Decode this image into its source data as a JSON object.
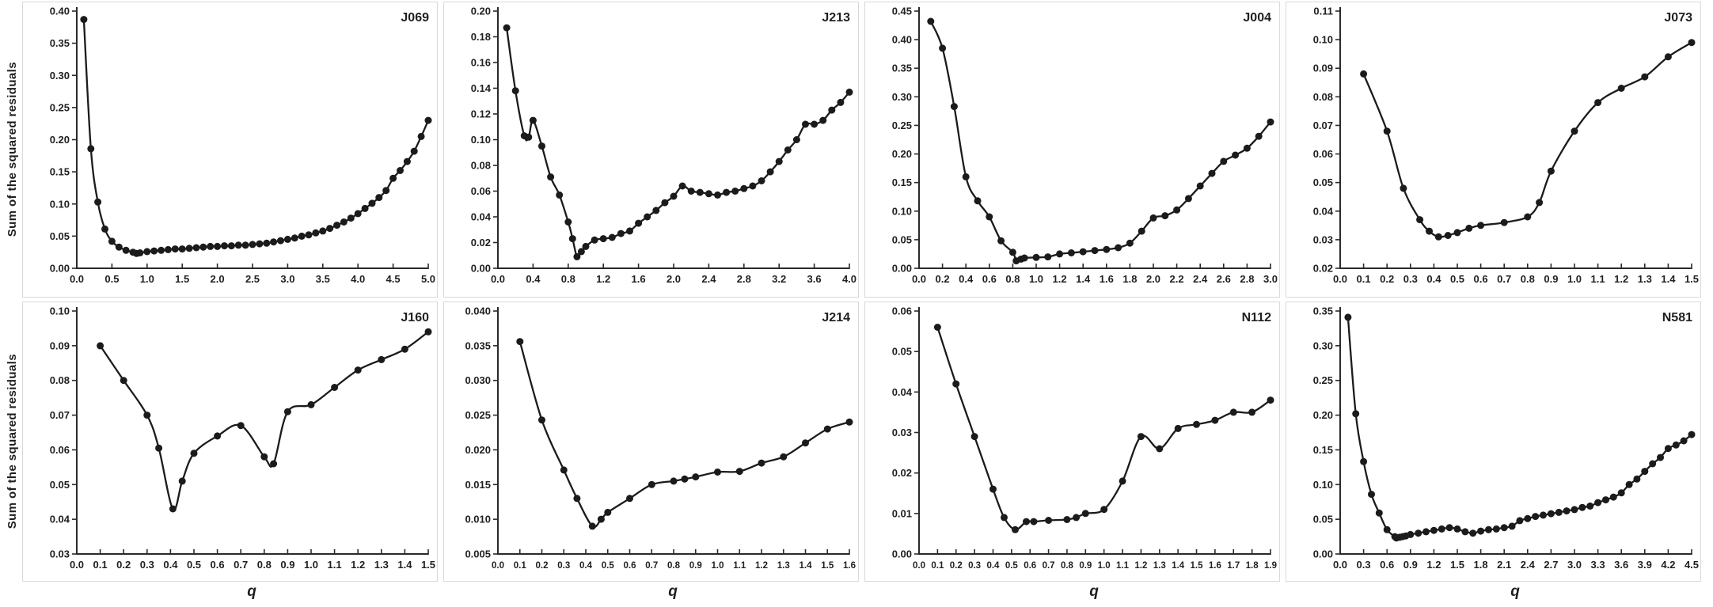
{
  "figure": {
    "ylabel": "Sum of the squared residuals",
    "xlabel": "q",
    "line_color": "#1b1b1b",
    "text_color": "#1f1f1f",
    "panel_border_color": "#d9d9d9"
  },
  "chart_data": [
    {
      "id": "J069",
      "type": "line",
      "title": "J069",
      "row": 0,
      "xlabel": "",
      "ylabel": "Sum of the squared residuals",
      "xlim": [
        0.0,
        5.0
      ],
      "ylim": [
        0.0,
        0.4
      ],
      "xtick_step": 0.5,
      "ytick_step": 0.05,
      "xtick_decimals": 1,
      "ytick_decimals": 2,
      "grid": false,
      "legend": "none",
      "points": [
        [
          0.1,
          0.387
        ],
        [
          0.2,
          0.186
        ],
        [
          0.3,
          0.103
        ],
        [
          0.4,
          0.061
        ],
        [
          0.5,
          0.042
        ],
        [
          0.6,
          0.033
        ],
        [
          0.7,
          0.028
        ],
        [
          0.8,
          0.025
        ],
        [
          0.85,
          0.023
        ],
        [
          0.9,
          0.024
        ],
        [
          1.0,
          0.026
        ],
        [
          1.1,
          0.027
        ],
        [
          1.2,
          0.028
        ],
        [
          1.3,
          0.029
        ],
        [
          1.4,
          0.03
        ],
        [
          1.5,
          0.03
        ],
        [
          1.6,
          0.031
        ],
        [
          1.7,
          0.032
        ],
        [
          1.8,
          0.033
        ],
        [
          1.9,
          0.034
        ],
        [
          2.0,
          0.034
        ],
        [
          2.1,
          0.035
        ],
        [
          2.2,
          0.035
        ],
        [
          2.3,
          0.036
        ],
        [
          2.4,
          0.036
        ],
        [
          2.5,
          0.037
        ],
        [
          2.6,
          0.038
        ],
        [
          2.7,
          0.039
        ],
        [
          2.8,
          0.041
        ],
        [
          2.9,
          0.043
        ],
        [
          3.0,
          0.045
        ],
        [
          3.1,
          0.047
        ],
        [
          3.2,
          0.05
        ],
        [
          3.3,
          0.052
        ],
        [
          3.4,
          0.055
        ],
        [
          3.5,
          0.058
        ],
        [
          3.6,
          0.062
        ],
        [
          3.7,
          0.067
        ],
        [
          3.8,
          0.072
        ],
        [
          3.9,
          0.078
        ],
        [
          4.0,
          0.085
        ],
        [
          4.1,
          0.093
        ],
        [
          4.2,
          0.101
        ],
        [
          4.3,
          0.11
        ],
        [
          4.4,
          0.121
        ],
        [
          4.5,
          0.14
        ],
        [
          4.6,
          0.152
        ],
        [
          4.7,
          0.166
        ],
        [
          4.8,
          0.182
        ],
        [
          4.9,
          0.205
        ],
        [
          5.0,
          0.23
        ]
      ]
    },
    {
      "id": "J213",
      "type": "line",
      "title": "J213",
      "row": 0,
      "xlabel": "",
      "ylabel": "Sum of the squared residuals",
      "xlim": [
        0.0,
        4.0
      ],
      "ylim": [
        0.0,
        0.2
      ],
      "xtick_step": 0.4,
      "ytick_step": 0.02,
      "xtick_decimals": 1,
      "ytick_decimals": 2,
      "grid": false,
      "legend": "none",
      "points": [
        [
          0.1,
          0.187
        ],
        [
          0.2,
          0.138
        ],
        [
          0.3,
          0.103
        ],
        [
          0.35,
          0.102
        ],
        [
          0.4,
          0.115
        ],
        [
          0.5,
          0.095
        ],
        [
          0.6,
          0.071
        ],
        [
          0.7,
          0.057
        ],
        [
          0.8,
          0.036
        ],
        [
          0.85,
          0.023
        ],
        [
          0.9,
          0.009
        ],
        [
          0.95,
          0.013
        ],
        [
          1.0,
          0.017
        ],
        [
          1.1,
          0.022
        ],
        [
          1.2,
          0.023
        ],
        [
          1.3,
          0.024
        ],
        [
          1.4,
          0.027
        ],
        [
          1.5,
          0.029
        ],
        [
          1.6,
          0.035
        ],
        [
          1.7,
          0.04
        ],
        [
          1.8,
          0.045
        ],
        [
          1.9,
          0.051
        ],
        [
          2.0,
          0.056
        ],
        [
          2.1,
          0.064
        ],
        [
          2.2,
          0.06
        ],
        [
          2.3,
          0.059
        ],
        [
          2.4,
          0.058
        ],
        [
          2.5,
          0.057
        ],
        [
          2.6,
          0.059
        ],
        [
          2.7,
          0.06
        ],
        [
          2.8,
          0.062
        ],
        [
          2.9,
          0.064
        ],
        [
          3.0,
          0.068
        ],
        [
          3.1,
          0.075
        ],
        [
          3.2,
          0.083
        ],
        [
          3.3,
          0.092
        ],
        [
          3.4,
          0.1
        ],
        [
          3.5,
          0.112
        ],
        [
          3.6,
          0.112
        ],
        [
          3.7,
          0.115
        ],
        [
          3.8,
          0.123
        ],
        [
          3.9,
          0.129
        ],
        [
          4.0,
          0.137
        ]
      ]
    },
    {
      "id": "J004",
      "type": "line",
      "title": "J004",
      "row": 0,
      "xlabel": "",
      "ylabel": "Sum of the squared residuals",
      "xlim": [
        0.0,
        3.0
      ],
      "ylim": [
        0.0,
        0.45
      ],
      "xtick_step": 0.2,
      "ytick_step": 0.05,
      "xtick_decimals": 1,
      "ytick_decimals": 2,
      "grid": false,
      "legend": "none",
      "points": [
        [
          0.1,
          0.432
        ],
        [
          0.2,
          0.385
        ],
        [
          0.3,
          0.283
        ],
        [
          0.4,
          0.16
        ],
        [
          0.5,
          0.118
        ],
        [
          0.6,
          0.09
        ],
        [
          0.7,
          0.048
        ],
        [
          0.8,
          0.028
        ],
        [
          0.83,
          0.013
        ],
        [
          0.87,
          0.016
        ],
        [
          0.9,
          0.018
        ],
        [
          1.0,
          0.019
        ],
        [
          1.1,
          0.02
        ],
        [
          1.2,
          0.025
        ],
        [
          1.3,
          0.027
        ],
        [
          1.4,
          0.029
        ],
        [
          1.5,
          0.031
        ],
        [
          1.6,
          0.033
        ],
        [
          1.7,
          0.036
        ],
        [
          1.8,
          0.044
        ],
        [
          1.9,
          0.065
        ],
        [
          2.0,
          0.088
        ],
        [
          2.1,
          0.092
        ],
        [
          2.2,
          0.102
        ],
        [
          2.3,
          0.122
        ],
        [
          2.4,
          0.144
        ],
        [
          2.5,
          0.166
        ],
        [
          2.6,
          0.187
        ],
        [
          2.7,
          0.198
        ],
        [
          2.8,
          0.21
        ],
        [
          2.9,
          0.231
        ],
        [
          3.0,
          0.256
        ]
      ]
    },
    {
      "id": "J073",
      "type": "line",
      "title": "J073",
      "row": 0,
      "xlabel": "",
      "ylabel": "Sum of the squared residuals",
      "xlim": [
        0.0,
        1.5
      ],
      "ylim": [
        0.02,
        0.11
      ],
      "xtick_step": 0.1,
      "ytick_step": 0.01,
      "xtick_decimals": 1,
      "ytick_decimals": 2,
      "grid": false,
      "legend": "none",
      "points": [
        [
          0.1,
          0.088
        ],
        [
          0.2,
          0.068
        ],
        [
          0.27,
          0.048
        ],
        [
          0.34,
          0.037
        ],
        [
          0.38,
          0.033
        ],
        [
          0.42,
          0.031
        ],
        [
          0.46,
          0.0315
        ],
        [
          0.5,
          0.0325
        ],
        [
          0.55,
          0.034
        ],
        [
          0.6,
          0.035
        ],
        [
          0.7,
          0.036
        ],
        [
          0.8,
          0.038
        ],
        [
          0.85,
          0.043
        ],
        [
          0.9,
          0.054
        ],
        [
          1.0,
          0.068
        ],
        [
          1.1,
          0.078
        ],
        [
          1.2,
          0.083
        ],
        [
          1.3,
          0.087
        ],
        [
          1.4,
          0.094
        ],
        [
          1.5,
          0.099
        ]
      ]
    },
    {
      "id": "J160",
      "type": "line",
      "title": "J160",
      "row": 1,
      "xlabel": "q",
      "ylabel": "Sum of the squared residuals",
      "xlim": [
        0.0,
        1.5
      ],
      "ylim": [
        0.03,
        0.1
      ],
      "xtick_step": 0.1,
      "ytick_step": 0.01,
      "xtick_decimals": 1,
      "ytick_decimals": 2,
      "grid": false,
      "legend": "none",
      "points": [
        [
          0.1,
          0.09
        ],
        [
          0.2,
          0.08
        ],
        [
          0.3,
          0.07
        ],
        [
          0.35,
          0.0605
        ],
        [
          0.41,
          0.043
        ],
        [
          0.45,
          0.051
        ],
        [
          0.5,
          0.059
        ],
        [
          0.6,
          0.064
        ],
        [
          0.7,
          0.067
        ],
        [
          0.8,
          0.058
        ],
        [
          0.84,
          0.056
        ],
        [
          0.9,
          0.071
        ],
        [
          1.0,
          0.073
        ],
        [
          1.1,
          0.078
        ],
        [
          1.2,
          0.083
        ],
        [
          1.3,
          0.086
        ],
        [
          1.4,
          0.089
        ],
        [
          1.5,
          0.094
        ]
      ]
    },
    {
      "id": "J214",
      "type": "line",
      "title": "J214",
      "row": 1,
      "xlabel": "q",
      "ylabel": "Sum of the squared residuals",
      "xlim": [
        0.0,
        1.6
      ],
      "ylim": [
        0.005,
        0.04
      ],
      "xtick_step": 0.1,
      "ytick_step": 0.005,
      "xtick_decimals": 1,
      "ytick_decimals": 3,
      "grid": false,
      "legend": "none",
      "points": [
        [
          0.1,
          0.0356
        ],
        [
          0.2,
          0.0243
        ],
        [
          0.3,
          0.0171
        ],
        [
          0.36,
          0.013
        ],
        [
          0.43,
          0.009
        ],
        [
          0.47,
          0.01
        ],
        [
          0.5,
          0.011
        ],
        [
          0.6,
          0.013
        ],
        [
          0.7,
          0.015
        ],
        [
          0.8,
          0.0155
        ],
        [
          0.85,
          0.0158
        ],
        [
          0.9,
          0.0161
        ],
        [
          1.0,
          0.0168
        ],
        [
          1.1,
          0.0169
        ],
        [
          1.2,
          0.0181
        ],
        [
          1.3,
          0.019
        ],
        [
          1.4,
          0.021
        ],
        [
          1.5,
          0.023
        ],
        [
          1.6,
          0.024
        ]
      ]
    },
    {
      "id": "N112",
      "type": "line",
      "title": "N112",
      "row": 1,
      "xlabel": "q",
      "ylabel": "Sum of the squared residuals",
      "xlim": [
        0.0,
        1.9
      ],
      "ylim": [
        0.0,
        0.06
      ],
      "xtick_step": 0.1,
      "ytick_step": 0.01,
      "xtick_decimals": 1,
      "ytick_decimals": 2,
      "grid": false,
      "legend": "none",
      "points": [
        [
          0.1,
          0.056
        ],
        [
          0.2,
          0.042
        ],
        [
          0.3,
          0.029
        ],
        [
          0.4,
          0.016
        ],
        [
          0.46,
          0.009
        ],
        [
          0.52,
          0.006
        ],
        [
          0.58,
          0.008
        ],
        [
          0.62,
          0.008
        ],
        [
          0.7,
          0.0083
        ],
        [
          0.8,
          0.0085
        ],
        [
          0.85,
          0.009
        ],
        [
          0.9,
          0.01
        ],
        [
          1.0,
          0.011
        ],
        [
          1.1,
          0.018
        ],
        [
          1.2,
          0.029
        ],
        [
          1.3,
          0.026
        ],
        [
          1.4,
          0.031
        ],
        [
          1.5,
          0.032
        ],
        [
          1.6,
          0.033
        ],
        [
          1.7,
          0.035
        ],
        [
          1.8,
          0.035
        ],
        [
          1.9,
          0.038
        ]
      ]
    },
    {
      "id": "N581",
      "type": "line",
      "title": "N581",
      "row": 1,
      "xlabel": "q",
      "ylabel": "Sum of the squared residuals",
      "xlim": [
        0.0,
        4.5
      ],
      "ylim": [
        0.0,
        0.35
      ],
      "xtick_step": 0.3,
      "ytick_step": 0.05,
      "xtick_decimals": 1,
      "ytick_decimals": 2,
      "grid": false,
      "legend": "none",
      "points": [
        [
          0.1,
          0.341
        ],
        [
          0.2,
          0.202
        ],
        [
          0.3,
          0.133
        ],
        [
          0.4,
          0.086
        ],
        [
          0.5,
          0.059
        ],
        [
          0.6,
          0.035
        ],
        [
          0.7,
          0.025
        ],
        [
          0.72,
          0.023
        ],
        [
          0.76,
          0.024
        ],
        [
          0.8,
          0.025
        ],
        [
          0.84,
          0.026
        ],
        [
          0.9,
          0.028
        ],
        [
          1.0,
          0.03
        ],
        [
          1.1,
          0.032
        ],
        [
          1.2,
          0.034
        ],
        [
          1.3,
          0.036
        ],
        [
          1.4,
          0.038
        ],
        [
          1.5,
          0.036
        ],
        [
          1.6,
          0.032
        ],
        [
          1.7,
          0.03
        ],
        [
          1.8,
          0.033
        ],
        [
          1.9,
          0.035
        ],
        [
          2.0,
          0.036
        ],
        [
          2.1,
          0.038
        ],
        [
          2.2,
          0.04
        ],
        [
          2.3,
          0.048
        ],
        [
          2.4,
          0.051
        ],
        [
          2.5,
          0.054
        ],
        [
          2.6,
          0.056
        ],
        [
          2.7,
          0.058
        ],
        [
          2.8,
          0.06
        ],
        [
          2.9,
          0.062
        ],
        [
          3.0,
          0.064
        ],
        [
          3.1,
          0.067
        ],
        [
          3.2,
          0.069
        ],
        [
          3.3,
          0.074
        ],
        [
          3.4,
          0.078
        ],
        [
          3.5,
          0.082
        ],
        [
          3.6,
          0.088
        ],
        [
          3.7,
          0.1
        ],
        [
          3.8,
          0.108
        ],
        [
          3.9,
          0.119
        ],
        [
          4.0,
          0.13
        ],
        [
          4.1,
          0.139
        ],
        [
          4.2,
          0.152
        ],
        [
          4.3,
          0.157
        ],
        [
          4.4,
          0.163
        ],
        [
          4.5,
          0.172
        ]
      ]
    }
  ]
}
